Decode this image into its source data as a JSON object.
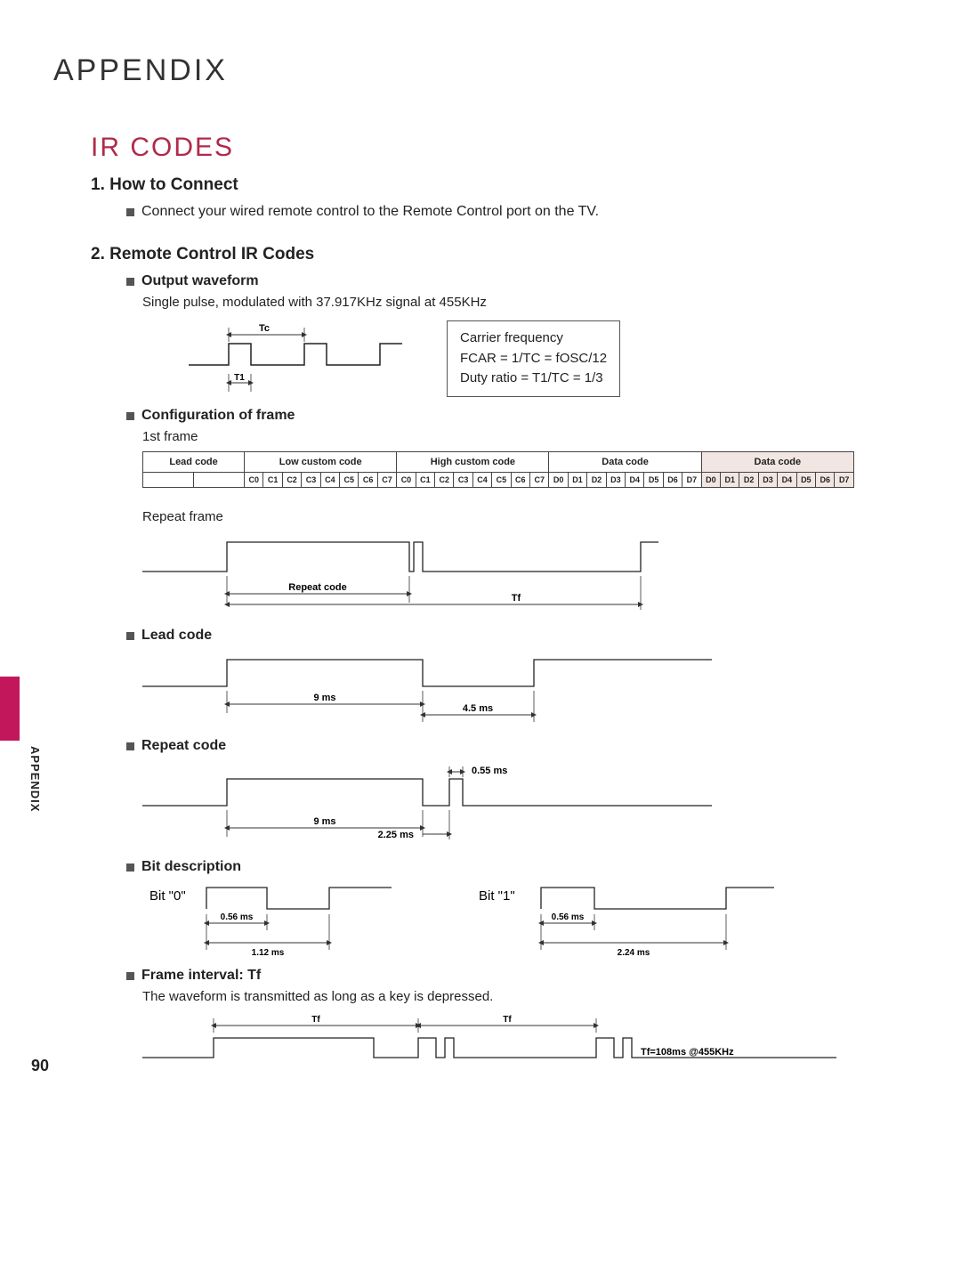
{
  "page": {
    "appendix_title": "APPENDIX",
    "accent_color": "#b02a4a",
    "side_tab_color": "#c2185b",
    "side_label": "APPENDIX",
    "page_number": "90"
  },
  "ir_codes": {
    "title": "IR CODES",
    "section1": {
      "heading": "1. How to Connect",
      "bullet": "Connect your wired remote control to the Remote Control port on the TV."
    },
    "section2": {
      "heading": "2. Remote Control IR Codes",
      "output_waveform": {
        "label": "Output waveform",
        "desc": "Single pulse, modulated with 37.917KHz signal at 455KHz",
        "tc_label": "Tc",
        "t1_label": "T1",
        "info_line1": "Carrier frequency",
        "info_line2": "FCAR = 1/TC = fOSC/12",
        "info_line3": "Duty ratio = T1/TC = 1/3"
      },
      "config": {
        "label": "Configuration of frame",
        "first_frame_label": "1st frame",
        "headers": [
          "Lead code",
          "Low custom code",
          "High custom code",
          "Data code",
          "Data code"
        ],
        "byte_labels": [
          "C0",
          "C1",
          "C2",
          "C3",
          "C4",
          "C5",
          "C6",
          "C7"
        ],
        "data_labels": [
          "D0",
          "D1",
          "D2",
          "D3",
          "D4",
          "D5",
          "D6",
          "D7"
        ],
        "repeat_frame_label": "Repeat frame",
        "repeat_code_label": "Repeat code",
        "tf_label": "Tf"
      },
      "lead_code": {
        "label": "Lead code",
        "t9": "9 ms",
        "t45": "4.5 ms"
      },
      "repeat_code": {
        "label": "Repeat code",
        "t055": "0.55 ms",
        "t9": "9 ms",
        "t225": "2.25 ms"
      },
      "bit_desc": {
        "label": "Bit description",
        "bit0": "Bit \"0\"",
        "bit1": "Bit \"1\"",
        "t056": "0.56 ms",
        "t112": "1.12 ms",
        "t224": "2.24 ms"
      },
      "frame_interval": {
        "label": "Frame interval: Tf",
        "desc": "The waveform is transmitted as long as a key is depressed.",
        "tf": "Tf",
        "note": "Tf=108ms @455KHz"
      }
    }
  },
  "style": {
    "line_color": "#222222",
    "arrow_color": "#333333",
    "text_color": "#222222",
    "shade_color": "#f2e6e2"
  }
}
